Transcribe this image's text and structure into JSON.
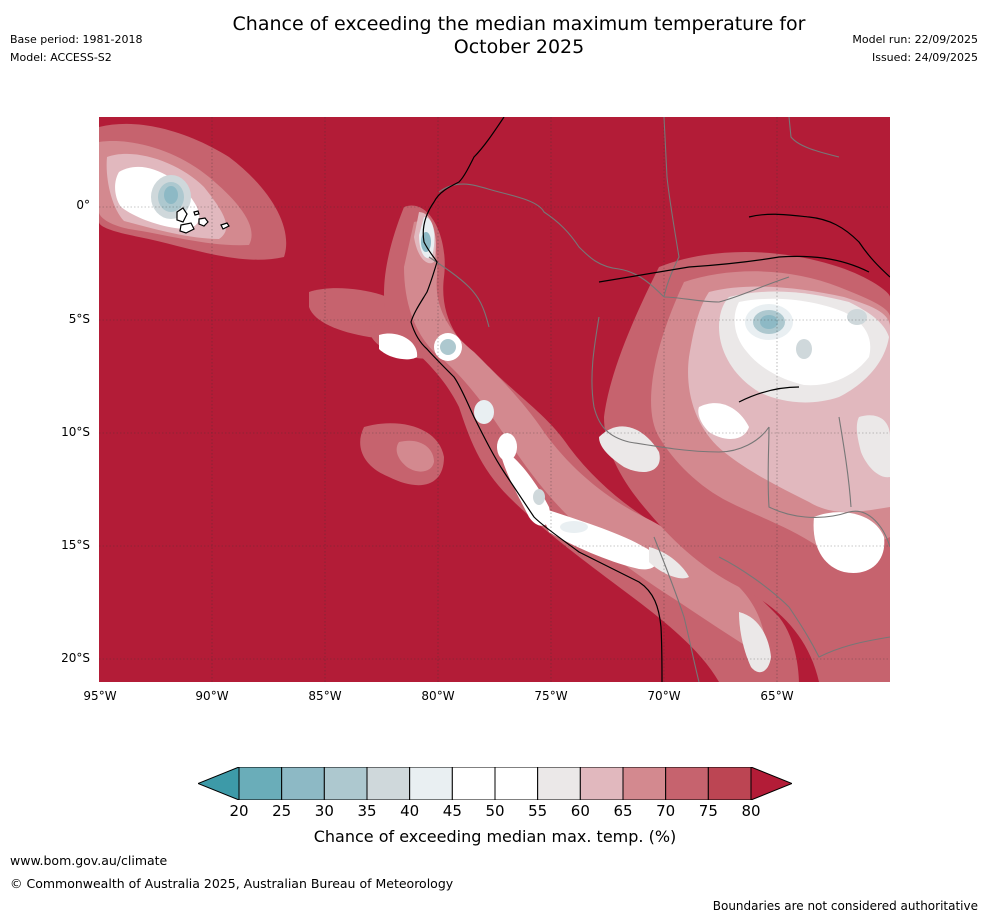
{
  "title_line1": "Chance of exceeding the median maximum temperature for",
  "title_line2": "October 2025",
  "meta": {
    "base_period": "Base period: 1981-2018",
    "model": "Model: ACCESS-S2",
    "model_run": "Model run: 22/09/2025",
    "issued": "Issued: 24/09/2025"
  },
  "map": {
    "lat_labels": [
      "0°",
      "5°S",
      "10°S",
      "15°S",
      "20°S"
    ],
    "lon_labels": [
      "95°W",
      "90°W",
      "85°W",
      "80°W",
      "75°W",
      "70°W",
      "65°W"
    ]
  },
  "colorbar": {
    "ticks": [
      "20",
      "25",
      "30",
      "35",
      "40",
      "45",
      "50",
      "55",
      "60",
      "65",
      "70",
      "75",
      "80"
    ],
    "colors": [
      "#3d9aa8",
      "#6aadb9",
      "#8db9c5",
      "#adc8cf",
      "#cfd8db",
      "#e9eff2",
      "#ffffff",
      "#ffffff",
      "#ebe8e8",
      "#e1b8be",
      "#d3898f",
      "#c6636e",
      "#bc4553",
      "#b31c37"
    ],
    "label": "Chance of exceeding median max. temp. (%)"
  },
  "footer": {
    "website": "www.bom.gov.au/climate",
    "copyright": "© Commonwealth of Australia 2025, Australian Bureau of Meteorology",
    "disclaimer": "Boundaries are not considered authoritative"
  }
}
